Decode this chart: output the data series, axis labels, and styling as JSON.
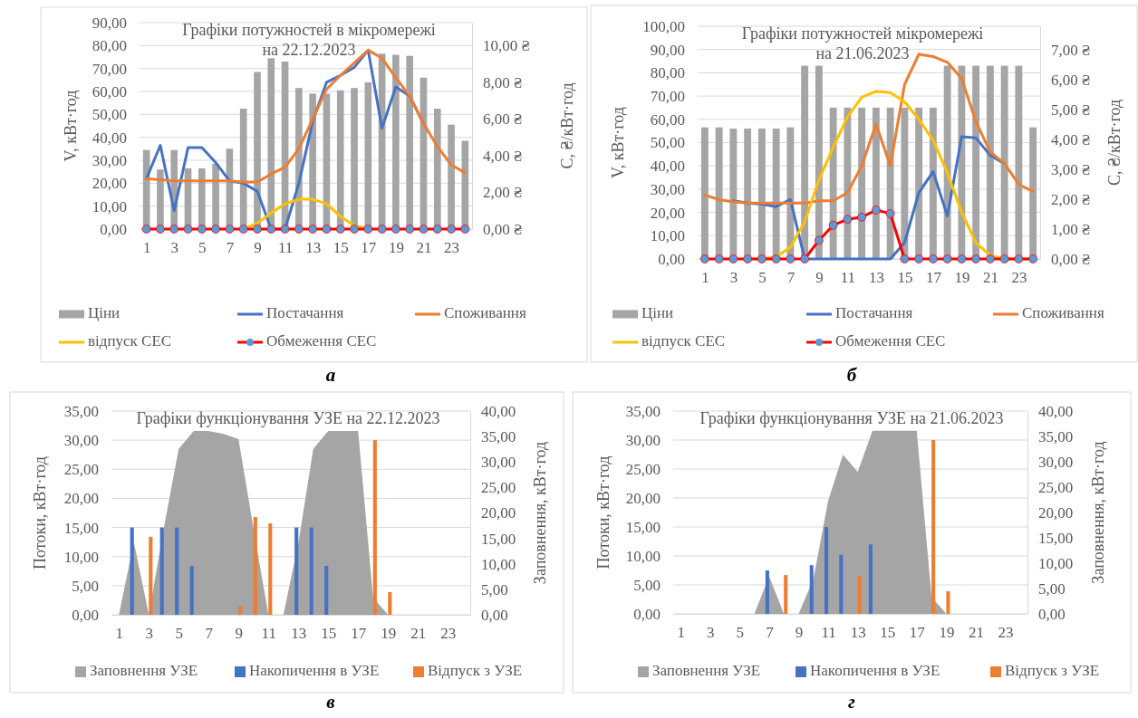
{
  "chart_data": [
    {
      "type": "bar",
      "title": "Графіки потужностей в мікромережі\nна 22.12.2023",
      "ylabel": "V, кВт·год",
      "y2label": "C, ₴/кВт·год",
      "x": [
        1,
        2,
        3,
        4,
        5,
        6,
        7,
        8,
        9,
        10,
        11,
        12,
        13,
        14,
        15,
        16,
        17,
        18,
        19,
        20,
        21,
        22,
        23,
        24
      ],
      "xlim": [
        0.5,
        24.5
      ],
      "xticks": [
        1,
        3,
        5,
        7,
        9,
        11,
        13,
        15,
        17,
        19,
        21,
        23
      ],
      "ylim": [
        0,
        90
      ],
      "yticks": [
        {
          "value": 0,
          "label": "0,00"
        },
        {
          "value": 10,
          "label": "10,00"
        },
        {
          "value": 20,
          "label": "20,00"
        },
        {
          "value": 30,
          "label": "30,00"
        },
        {
          "value": 40,
          "label": "40,00"
        },
        {
          "value": 50,
          "label": "50,00"
        },
        {
          "value": 60,
          "label": "60,00"
        },
        {
          "value": 70,
          "label": "70,00"
        },
        {
          "value": 80,
          "label": "80,00"
        },
        {
          "value": 90,
          "label": "90,00"
        }
      ],
      "y2lim": [
        0,
        11.25
      ],
      "y2ticks": [
        {
          "value": 0,
          "label": "0,00 ₴"
        },
        {
          "value": 2,
          "label": "2,00 ₴"
        },
        {
          "value": 4,
          "label": "4,00 ₴"
        },
        {
          "value": 6,
          "label": "6,00 ₴"
        },
        {
          "value": 8,
          "label": "8,00 ₴"
        },
        {
          "value": 10,
          "label": "10,00 ₴"
        }
      ],
      "grid": "y",
      "legend": "bottom",
      "annotations": [
        "а"
      ],
      "series": [
        {
          "name": "Ціни",
          "axis": "y2",
          "color": "#a5a5a5",
          "values": [
            4.31,
            3.25,
            4.31,
            3.31,
            3.31,
            3.56,
            4.38,
            6.56,
            8.56,
            9.31,
            9.13,
            7.69,
            7.38,
            7.38,
            7.56,
            7.69,
            8.0,
            9.56,
            9.5,
            9.44,
            8.25,
            6.56,
            5.69,
            4.81
          ]
        },
        {
          "name": "Постачання",
          "type": "line",
          "color": "#4472c4",
          "values": [
            22,
            36.5,
            8,
            35.5,
            35.5,
            29,
            21,
            20,
            16.5,
            0,
            0,
            20,
            47,
            64,
            67,
            70.5,
            78,
            44,
            62,
            58,
            46,
            null,
            null,
            null
          ]
        },
        {
          "name": "Споживання",
          "type": "line",
          "color": "#ed7d31",
          "values": [
            22,
            21.5,
            21,
            21,
            21,
            21,
            21,
            20.5,
            20.5,
            24,
            27,
            35,
            48,
            61,
            67,
            72.5,
            78,
            74.5,
            66,
            58,
            46,
            36,
            28,
            24.5
          ]
        },
        {
          "name": "відпуск СЕС",
          "type": "line",
          "color": "#ffc000",
          "values": [
            null,
            null,
            null,
            null,
            null,
            null,
            null,
            0,
            2.5,
            7,
            11,
            13,
            13,
            11,
            5.5,
            1.5,
            0,
            null,
            null,
            null,
            null,
            null,
            null,
            null
          ]
        },
        {
          "name": "Обмеження СЕС",
          "type": "line",
          "color": "#ff0000",
          "marker": "circle",
          "values": [
            0,
            0,
            0,
            0,
            0,
            0,
            0,
            0,
            0,
            0,
            0,
            0,
            0,
            0,
            0,
            0,
            0,
            0,
            0,
            0,
            0,
            0,
            0,
            0
          ]
        }
      ]
    },
    {
      "type": "bar",
      "title": "Графіки потужностей мікромережі\nна 21.06.2023",
      "ylabel": "V, кВт·год",
      "y2label": "C, ₴/кВт·год",
      "x": [
        1,
        2,
        3,
        4,
        5,
        6,
        7,
        8,
        9,
        10,
        11,
        12,
        13,
        14,
        15,
        16,
        17,
        18,
        19,
        20,
        21,
        22,
        23,
        24
      ],
      "xlim": [
        0.5,
        24.5
      ],
      "xticks": [
        1,
        3,
        5,
        7,
        9,
        11,
        13,
        15,
        17,
        19,
        21,
        23
      ],
      "ylim": [
        0,
        100
      ],
      "yticks": [
        {
          "value": 0,
          "label": "0,00"
        },
        {
          "value": 10,
          "label": "10,00"
        },
        {
          "value": 20,
          "label": "20,00"
        },
        {
          "value": 30,
          "label": "30,00"
        },
        {
          "value": 40,
          "label": "40,00"
        },
        {
          "value": 50,
          "label": "50,00"
        },
        {
          "value": 60,
          "label": "60,00"
        },
        {
          "value": 70,
          "label": "70,00"
        },
        {
          "value": 80,
          "label": "80,00"
        },
        {
          "value": 90,
          "label": "90,00"
        },
        {
          "value": 100,
          "label": "100,00"
        }
      ],
      "y2lim": [
        0,
        7.78
      ],
      "y2ticks": [
        {
          "value": 0,
          "label": "0,00 ₴"
        },
        {
          "value": 1,
          "label": "1,00 ₴"
        },
        {
          "value": 2,
          "label": "2,00 ₴"
        },
        {
          "value": 3,
          "label": "3,00 ₴"
        },
        {
          "value": 4,
          "label": "4,00 ₴"
        },
        {
          "value": 5,
          "label": "5,00 ₴"
        },
        {
          "value": 6,
          "label": "6,00 ₴"
        },
        {
          "value": 7,
          "label": "7,00 ₴"
        }
      ],
      "grid": "y",
      "legend": "bottom",
      "annotations": [
        "б"
      ],
      "series": [
        {
          "name": "Ціни",
          "axis": "y2",
          "color": "#a5a5a5",
          "values": [
            4.4,
            4.4,
            4.36,
            4.36,
            4.36,
            4.36,
            4.4,
            6.46,
            6.46,
            5.06,
            5.06,
            5.06,
            5.06,
            5.06,
            5.06,
            5.06,
            5.06,
            6.46,
            6.46,
            6.46,
            6.46,
            6.46,
            6.46,
            4.4
          ]
        },
        {
          "name": "Постачання",
          "type": "line",
          "color": "#4472c4",
          "values": [
            null,
            null,
            25,
            24,
            23.5,
            22.5,
            25.5,
            0,
            0,
            0,
            0,
            0,
            0,
            0,
            7,
            28.5,
            37.5,
            18.5,
            52.5,
            52,
            44.5,
            41,
            null,
            null
          ]
        },
        {
          "name": "Споживання",
          "type": "line",
          "color": "#ed7d31",
          "values": [
            27.5,
            25.5,
            24.5,
            24,
            24,
            24,
            24,
            24,
            25,
            25,
            28.5,
            40,
            58,
            40,
            75,
            88,
            87,
            84.5,
            77.5,
            59,
            46,
            41,
            32,
            29
          ]
        },
        {
          "name": "відпуск СЕС",
          "type": "line",
          "color": "#ffc000",
          "values": [
            null,
            null,
            null,
            0,
            0,
            1,
            5,
            16,
            34,
            48,
            61,
            69.5,
            72,
            71.5,
            67.5,
            60,
            51,
            37,
            20,
            7,
            1.5,
            0,
            0,
            0
          ]
        },
        {
          "name": "Обмеження СЕС",
          "type": "line",
          "color": "#ff0000",
          "marker": "circle",
          "values": [
            0,
            0,
            0,
            0,
            0,
            0,
            0,
            0,
            8,
            14.5,
            17,
            18,
            21,
            19.5,
            0,
            0,
            0,
            0,
            0,
            0,
            0,
            0,
            0,
            0
          ]
        }
      ]
    },
    {
      "type": "bar",
      "title": "Графіки функціонування УЗЕ на 22.12.2023",
      "ylabel": "Потоки, кВт·год",
      "y2label": "Заповнення, кВт·год",
      "x": [
        1,
        2,
        3,
        4,
        5,
        6,
        7,
        8,
        9,
        10,
        11,
        12,
        13,
        14,
        15,
        16,
        17,
        18,
        19,
        20,
        21,
        22,
        23,
        24
      ],
      "xlim": [
        0.5,
        24.5
      ],
      "xticks": [
        1,
        3,
        5,
        7,
        9,
        11,
        13,
        15,
        17,
        19,
        21,
        23
      ],
      "ylim": [
        0,
        35
      ],
      "yticks": [
        {
          "value": 0,
          "label": "0,00"
        },
        {
          "value": 5,
          "label": "5,00"
        },
        {
          "value": 10,
          "label": "10,00"
        },
        {
          "value": 15,
          "label": "15,00"
        },
        {
          "value": 20,
          "label": "20,00"
        },
        {
          "value": 25,
          "label": "25,00"
        },
        {
          "value": 30,
          "label": "30,00"
        },
        {
          "value": 35,
          "label": "35,00"
        }
      ],
      "y2lim": [
        0,
        40
      ],
      "y2ticks": [
        {
          "value": 0,
          "label": "0,00"
        },
        {
          "value": 5,
          "label": "5,00"
        },
        {
          "value": 10,
          "label": "10,00"
        },
        {
          "value": 15,
          "label": "15,00"
        },
        {
          "value": 20,
          "label": "20,00"
        },
        {
          "value": 25,
          "label": "25,00"
        },
        {
          "value": 30,
          "label": "30,00"
        },
        {
          "value": 35,
          "label": "35,00"
        },
        {
          "value": 40,
          "label": "40,00"
        }
      ],
      "grid": "y",
      "legend": "bottom",
      "annotations": [
        "в"
      ],
      "series": [
        {
          "name": "Заповнення УЗЕ",
          "type": "area",
          "axis": "y2",
          "color": "#a5a5a5",
          "values": [
            0,
            14.3,
            0,
            17,
            32.6,
            36.1,
            36.1,
            35.5,
            34.5,
            17,
            0,
            0,
            14,
            32.6,
            36.1,
            36.1,
            36.1,
            3.4,
            0,
            0,
            0,
            0,
            0,
            0
          ]
        },
        {
          "name": "Накопичення в УЗЕ",
          "color": "#4472c4",
          "values": [
            null,
            15,
            null,
            15,
            15,
            8.4,
            null,
            null,
            null,
            null,
            null,
            null,
            15,
            15,
            8.4,
            null,
            null,
            null,
            null,
            null,
            null,
            null,
            null,
            null
          ]
        },
        {
          "name": "Відпуск з УЗЕ",
          "color": "#ed7d31",
          "values": [
            null,
            null,
            13.4,
            null,
            null,
            null,
            null,
            null,
            1.5,
            16.8,
            15.7,
            null,
            null,
            null,
            null,
            null,
            null,
            30,
            3.9,
            null,
            null,
            null,
            null,
            null
          ]
        }
      ]
    },
    {
      "type": "bar",
      "title": "Графіки функціонування УЗЕ на 21.06.2023",
      "ylabel": "Потоки, кВт·год",
      "y2label": "Заповнення, кВт·год",
      "x": [
        1,
        2,
        3,
        4,
        5,
        6,
        7,
        8,
        9,
        10,
        11,
        12,
        13,
        14,
        15,
        16,
        17,
        18,
        19,
        20,
        21,
        22,
        23,
        24
      ],
      "xlim": [
        0.5,
        24.5
      ],
      "xticks": [
        1,
        3,
        5,
        7,
        9,
        11,
        13,
        15,
        17,
        19,
        21,
        23
      ],
      "ylim": [
        0,
        35
      ],
      "yticks": [
        {
          "value": 0,
          "label": "0,00"
        },
        {
          "value": 5,
          "label": "5,00"
        },
        {
          "value": 10,
          "label": "10,00"
        },
        {
          "value": 15,
          "label": "15,00"
        },
        {
          "value": 20,
          "label": "20,00"
        },
        {
          "value": 25,
          "label": "25,00"
        },
        {
          "value": 30,
          "label": "30,00"
        },
        {
          "value": 35,
          "label": "35,00"
        }
      ],
      "y2lim": [
        0,
        40
      ],
      "y2ticks": [
        {
          "value": 0,
          "label": "0,00"
        },
        {
          "value": 5,
          "label": "5,00"
        },
        {
          "value": 10,
          "label": "10,00"
        },
        {
          "value": 15,
          "label": "15,00"
        },
        {
          "value": 20,
          "label": "20,00"
        },
        {
          "value": 25,
          "label": "25,00"
        },
        {
          "value": 30,
          "label": "30,00"
        },
        {
          "value": 35,
          "label": "35,00"
        },
        {
          "value": 40,
          "label": "40,00"
        }
      ],
      "grid": "y",
      "legend": "bottom",
      "annotations": [
        "г"
      ],
      "series": [
        {
          "name": "Заповнення УЗЕ",
          "type": "area",
          "axis": "y2",
          "color": "#a5a5a5",
          "values": [
            0,
            0,
            0,
            0,
            0,
            0,
            7.4,
            0,
            0,
            6.9,
            22.3,
            31.4,
            28,
            36.1,
            36.1,
            36.1,
            36.1,
            3.4,
            0,
            0,
            0,
            0,
            0,
            0
          ]
        },
        {
          "name": "Накопичення в УЗЕ",
          "color": "#4472c4",
          "values": [
            null,
            null,
            null,
            null,
            null,
            null,
            7.5,
            null,
            null,
            8.4,
            15,
            10.2,
            null,
            12,
            null,
            null,
            null,
            null,
            null,
            null,
            null,
            null,
            null,
            null
          ]
        },
        {
          "name": "Відпуск з УЗЕ",
          "color": "#ed7d31",
          "values": [
            null,
            null,
            null,
            null,
            null,
            null,
            null,
            6.7,
            null,
            null,
            null,
            null,
            6.6,
            null,
            null,
            null,
            null,
            30,
            3.9,
            null,
            null,
            null,
            null,
            null
          ]
        }
      ]
    }
  ]
}
